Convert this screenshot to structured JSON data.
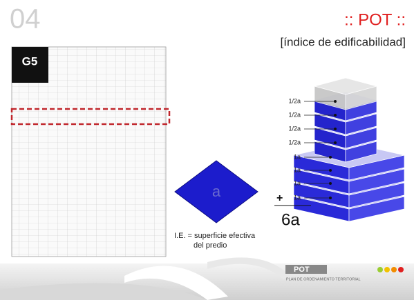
{
  "header": {
    "number": "04",
    "title": ":: POT ::",
    "subtitle": "[índice de edificabilidad]"
  },
  "document": {
    "code": "G5"
  },
  "diagram": {
    "area_label": "a",
    "layer_labels": [
      "1/2a",
      "1/2a",
      "1/2a",
      "1/2a",
      "1a",
      "1a",
      "1a",
      "1a"
    ],
    "plus": "+",
    "total": "6a",
    "formula_line1": "I.E. = superficie efectiva",
    "formula_line2": "del predio"
  },
  "footer": {
    "logo": "POT",
    "logo_subtitle": "PLAN DE ORDENAMIENTO TERRITORIAL"
  }
}
